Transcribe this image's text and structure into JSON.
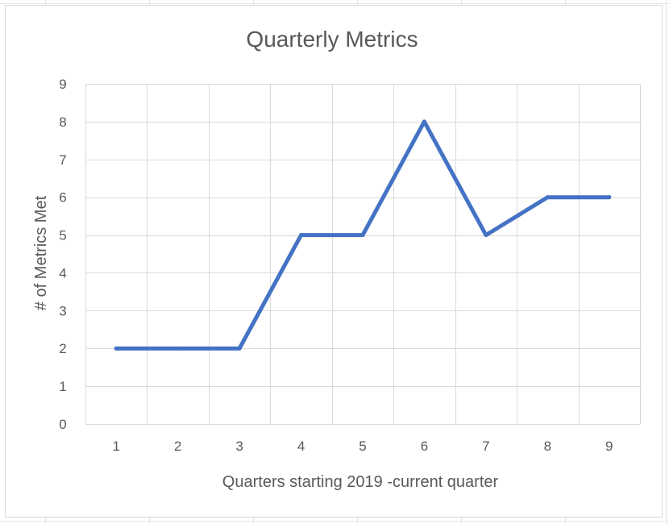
{
  "chart_data": {
    "type": "line",
    "title": "Quarterly Metrics",
    "xlabel": "Quarters starting 2019 -current quarter",
    "ylabel": "# of Metrics Met",
    "x": [
      1,
      2,
      3,
      4,
      5,
      6,
      7,
      8,
      9
    ],
    "series": [
      {
        "values": [
          2,
          2,
          2,
          5,
          5,
          8,
          5,
          6,
          6
        ]
      }
    ],
    "ylim": [
      0,
      9
    ],
    "yticks": [
      0,
      1,
      2,
      3,
      4,
      5,
      6,
      7,
      8,
      9
    ],
    "grid": true,
    "legend": "none",
    "colors": {
      "line": "#4472c4",
      "grid": "#d9d9d9",
      "text": "#595959"
    }
  }
}
